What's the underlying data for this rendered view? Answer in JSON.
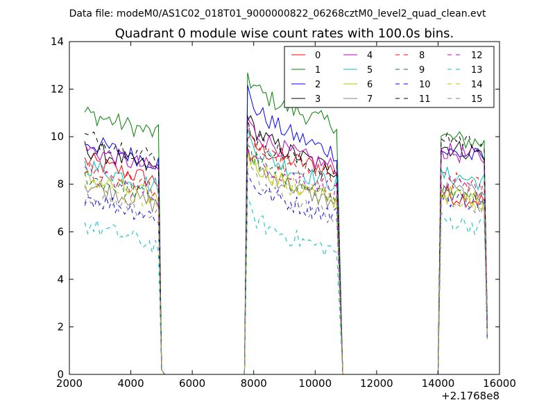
{
  "chart_data": {
    "type": "line",
    "suptitle": "Data file: modeM0/AS1C02_018T01_9000000822_06268cztM0_level2_quad_clean.evt",
    "title": "Quadrant 0 module wise count rates with 100.0s bins.",
    "xlabel": "",
    "ylabel": "",
    "x_offset_label": "+2.1768e8",
    "xlim": [
      2000,
      16000
    ],
    "ylim": [
      0,
      14
    ],
    "xticks": [
      2000,
      4000,
      6000,
      8000,
      10000,
      12000,
      14000,
      16000
    ],
    "yticks": [
      0,
      2,
      4,
      6,
      8,
      10,
      12,
      14
    ],
    "xtick_labels": [
      "2000",
      "4000",
      "6000",
      "8000",
      "10000",
      "12000",
      "14000",
      "16000"
    ],
    "ytick_labels": [
      "0",
      "2",
      "4",
      "6",
      "8",
      "10",
      "12",
      "14"
    ],
    "grid": false,
    "legend_position": "top-right",
    "segments": [
      {
        "start": 2500,
        "end": 4900
      },
      {
        "start": 7800,
        "end": 10700
      },
      {
        "start": 14100,
        "end": 15500
      }
    ],
    "x_gap_points": [
      5000,
      5100,
      7700,
      10900,
      11000,
      14000,
      15600
    ],
    "series": [
      {
        "name": "0",
        "color": "#ff0000",
        "dash": "solid",
        "levels": [
          9.0,
          10.0,
          8.6,
          7.6
        ]
      },
      {
        "name": "1",
        "color": "#008000",
        "dash": "solid",
        "levels": [
          11.0,
          12.7,
          10.5,
          10.0
        ]
      },
      {
        "name": "2",
        "color": "#0000ff",
        "dash": "solid",
        "levels": [
          9.8,
          12.0,
          9.3,
          9.4
        ]
      },
      {
        "name": "3",
        "color": "#000000",
        "dash": "solid",
        "levels": [
          9.5,
          11.0,
          8.6,
          9.6
        ]
      },
      {
        "name": "4",
        "color": "#bf00bf",
        "dash": "solid",
        "levels": [
          9.5,
          10.8,
          8.7,
          9.4
        ]
      },
      {
        "name": "5",
        "color": "#00bfbf",
        "dash": "solid",
        "levels": [
          8.8,
          10.2,
          8.0,
          8.4
        ]
      },
      {
        "name": "6",
        "color": "#bfbf00",
        "dash": "solid",
        "levels": [
          8.3,
          9.5,
          7.3,
          7.6
        ]
      },
      {
        "name": "7",
        "color": "#808080",
        "dash": "solid",
        "levels": [
          8.0,
          9.6,
          7.2,
          7.8
        ]
      },
      {
        "name": "8",
        "color": "#ff0000",
        "dash": "dashed",
        "levels": [
          8.7,
          10.2,
          8.0,
          8.2
        ]
      },
      {
        "name": "9",
        "color": "#008000",
        "dash": "dashed",
        "levels": [
          8.3,
          9.7,
          7.4,
          7.6
        ]
      },
      {
        "name": "10",
        "color": "#0000ff",
        "dash": "dashed",
        "levels": [
          7.5,
          8.4,
          6.7,
          7.5
        ]
      },
      {
        "name": "11",
        "color": "#000000",
        "dash": "dashed",
        "levels": [
          10.0,
          10.7,
          8.4,
          10.0
        ]
      },
      {
        "name": "12",
        "color": "#bf00bf",
        "dash": "dashed",
        "levels": [
          8.4,
          9.5,
          7.8,
          8.0
        ]
      },
      {
        "name": "13",
        "color": "#00bfbf",
        "dash": "dashed",
        "levels": [
          6.3,
          7.1,
          5.2,
          6.5
        ]
      },
      {
        "name": "14",
        "color": "#bfbf00",
        "dash": "dashed",
        "levels": [
          8.0,
          9.2,
          7.4,
          7.5
        ]
      },
      {
        "name": "15",
        "color": "#808080",
        "dash": "dashed",
        "levels": [
          7.6,
          8.8,
          6.6,
          7.3
        ]
      }
    ]
  }
}
